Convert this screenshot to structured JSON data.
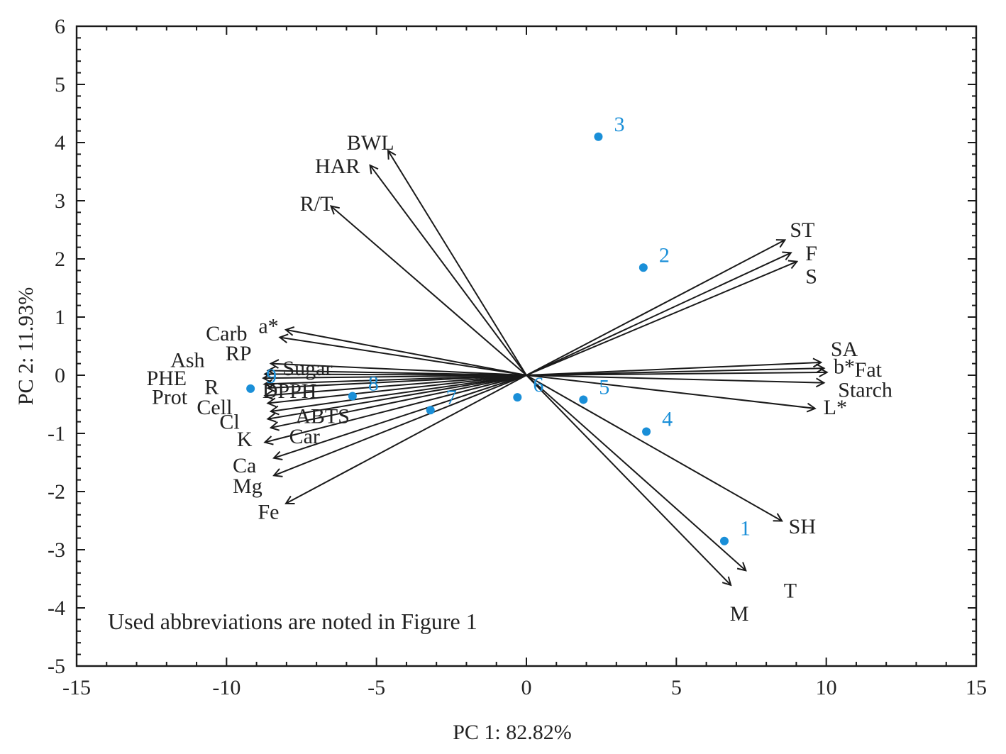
{
  "chart_data": {
    "type": "scatter",
    "subtype": "biplot",
    "xlabel": "PC 1: 82.82%",
    "ylabel": "PC 2: 11.93%",
    "xlim": [
      -15,
      15
    ],
    "ylim": [
      -5,
      6
    ],
    "xticks": [
      -15,
      -10,
      -5,
      0,
      5,
      10,
      15
    ],
    "yticks": [
      -5,
      -4,
      -3,
      -2,
      -1,
      0,
      1,
      2,
      3,
      4,
      5,
      6
    ],
    "grid": false,
    "annotation": "Used abbreviations are noted in Figure 1",
    "observations": [
      {
        "label": "1",
        "x": 6.6,
        "y": -2.85
      },
      {
        "label": "2",
        "x": 3.9,
        "y": 1.85
      },
      {
        "label": "3",
        "x": 2.4,
        "y": 4.1
      },
      {
        "label": "4",
        "x": 4.0,
        "y": -0.97
      },
      {
        "label": "5",
        "x": 1.9,
        "y": -0.42
      },
      {
        "label": "6",
        "x": -0.3,
        "y": -0.38
      },
      {
        "label": "7",
        "x": -3.2,
        "y": -0.6
      },
      {
        "label": "8",
        "x": -5.8,
        "y": -0.36
      },
      {
        "label": "9",
        "x": -9.2,
        "y": -0.23
      }
    ],
    "variables": [
      {
        "label": "BWL",
        "x": -4.6,
        "y": 3.85
      },
      {
        "label": "HAR",
        "x": -5.2,
        "y": 3.6
      },
      {
        "label": "R/T",
        "x": -6.5,
        "y": 2.9
      },
      {
        "label": "ST",
        "x": 8.6,
        "y": 2.32
      },
      {
        "label": "F",
        "x": 8.8,
        "y": 2.1
      },
      {
        "label": "S",
        "x": 9.0,
        "y": 1.95
      },
      {
        "label": "SA",
        "x": 9.8,
        "y": 0.22
      },
      {
        "label": "b*",
        "x": 9.9,
        "y": 0.12
      },
      {
        "label": "Fat",
        "x": 10.0,
        "y": 0.05
      },
      {
        "label": "Starch",
        "x": 9.9,
        "y": -0.13
      },
      {
        "label": "L*",
        "x": 9.6,
        "y": -0.57
      },
      {
        "label": "SH",
        "x": 8.5,
        "y": -2.5
      },
      {
        "label": "T",
        "x": 7.3,
        "y": -3.35
      },
      {
        "label": "M",
        "x": 6.8,
        "y": -3.6
      },
      {
        "label": "a*",
        "x": -8.0,
        "y": 0.78
      },
      {
        "label": "Carb",
        "x": -8.2,
        "y": 0.65
      },
      {
        "label": "RP",
        "x": -8.5,
        "y": 0.2
      },
      {
        "label": "Sugar",
        "x": -8.6,
        "y": 0.08
      },
      {
        "label": "Ash",
        "x": -8.7,
        "y": 0.02
      },
      {
        "label": "PHE",
        "x": -8.75,
        "y": -0.05
      },
      {
        "label": "R",
        "x": -8.7,
        "y": -0.15
      },
      {
        "label": "DPPH",
        "x": -8.6,
        "y": -0.22
      },
      {
        "label": "Prot",
        "x": -8.7,
        "y": -0.35
      },
      {
        "label": "Cell",
        "x": -8.6,
        "y": -0.48
      },
      {
        "label": "ABTS",
        "x": -8.5,
        "y": -0.62
      },
      {
        "label": "Cl",
        "x": -8.6,
        "y": -0.75
      },
      {
        "label": "Car",
        "x": -8.5,
        "y": -0.9
      },
      {
        "label": "K",
        "x": -8.7,
        "y": -1.15
      },
      {
        "label": "Ca",
        "x": -8.4,
        "y": -1.42
      },
      {
        "label": "Mg",
        "x": -8.4,
        "y": -1.72
      },
      {
        "label": "Fe",
        "x": -8.0,
        "y": -2.2
      }
    ],
    "variable_label_positions": [
      {
        "label": "BWL",
        "x": -5.2,
        "y": 4.0
      },
      {
        "label": "HAR",
        "x": -6.3,
        "y": 3.6
      },
      {
        "label": "R/T",
        "x": -7.0,
        "y": 2.95
      },
      {
        "label": "ST",
        "x": 9.2,
        "y": 2.5
      },
      {
        "label": "F",
        "x": 9.5,
        "y": 2.1
      },
      {
        "label": "S",
        "x": 9.5,
        "y": 1.7
      },
      {
        "label": "SA",
        "x": 10.6,
        "y": 0.45
      },
      {
        "label": "b*",
        "x": 10.6,
        "y": 0.15
      },
      {
        "label": "Fat",
        "x": 11.4,
        "y": 0.1
      },
      {
        "label": "Starch",
        "x": 11.3,
        "y": -0.25
      },
      {
        "label": "L*",
        "x": 10.3,
        "y": -0.55
      },
      {
        "label": "SH",
        "x": 9.2,
        "y": -2.6
      },
      {
        "label": "T",
        "x": 8.8,
        "y": -3.7
      },
      {
        "label": "M",
        "x": 7.1,
        "y": -4.1
      },
      {
        "label": "a*",
        "x": -8.6,
        "y": 0.85
      },
      {
        "label": "Carb",
        "x": -10.0,
        "y": 0.72
      },
      {
        "label": "RP",
        "x": -9.6,
        "y": 0.38
      },
      {
        "label": "Sugar",
        "x": -7.3,
        "y": 0.12
      },
      {
        "label": "Ash",
        "x": -11.3,
        "y": 0.26
      },
      {
        "label": "PHE",
        "x": -12.0,
        "y": -0.05
      },
      {
        "label": "R",
        "x": -10.5,
        "y": -0.2
      },
      {
        "label": "DPPH",
        "x": -7.9,
        "y": -0.27
      },
      {
        "label": "Prot",
        "x": -11.9,
        "y": -0.37
      },
      {
        "label": "Cell",
        "x": -10.4,
        "y": -0.55
      },
      {
        "label": "ABTS",
        "x": -6.8,
        "y": -0.7
      },
      {
        "label": "Cl",
        "x": -9.9,
        "y": -0.8
      },
      {
        "label": "Car",
        "x": -7.4,
        "y": -1.05
      },
      {
        "label": "K",
        "x": -9.4,
        "y": -1.1
      },
      {
        "label": "Ca",
        "x": -9.4,
        "y": -1.55
      },
      {
        "label": "Mg",
        "x": -9.3,
        "y": -1.9
      },
      {
        "label": "Fe",
        "x": -8.6,
        "y": -2.35
      }
    ],
    "colors": {
      "observation": "#1a8fd8",
      "variable": "#1a1a1a"
    }
  }
}
